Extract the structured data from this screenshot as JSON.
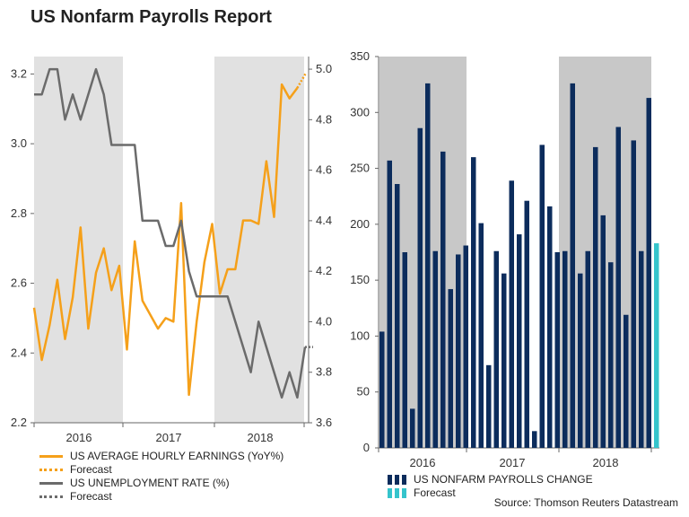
{
  "title": "US Nonfarm Payrolls Report",
  "source": "Source: Thomson Reuters Datastream",
  "colors": {
    "earnings": "#f5a01a",
    "unemployment": "#6b6b6b",
    "payrolls": "#0c2c5c",
    "payrolls_forecast": "#35c4cc",
    "shade": "#e1e1e1",
    "shade_right": "#c8c8c8"
  },
  "chart_data": [
    {
      "type": "line",
      "title": "",
      "x_labels": [
        "2016",
        "2017",
        "2018"
      ],
      "shaded_periods": [
        "2016",
        "2018"
      ],
      "left_axis": {
        "ylim": [
          2.2,
          3.25
        ],
        "ticks": [
          "2.2",
          "2.4",
          "2.6",
          "2.8",
          "3.0",
          "3.2"
        ]
      },
      "right_axis": {
        "ylim": [
          3.6,
          5.05
        ],
        "ticks": [
          "3.6",
          "3.8",
          "4.0",
          "4.2",
          "4.4",
          "4.6",
          "4.8",
          "5.0"
        ]
      },
      "series": [
        {
          "name": "US AVERAGE HOURLY EARNINGS (YoY%)",
          "axis": "left",
          "values": [
            2.53,
            2.38,
            2.48,
            2.61,
            2.44,
            2.56,
            2.76,
            2.47,
            2.63,
            2.7,
            2.58,
            2.65,
            2.41,
            2.72,
            2.55,
            2.51,
            2.47,
            2.5,
            2.49,
            2.83,
            2.28,
            2.49,
            2.66,
            2.77,
            2.57,
            2.64,
            2.64,
            2.78,
            2.78,
            2.77,
            2.95,
            2.79,
            3.17,
            3.13,
            3.16
          ],
          "forecast": [
            3.16,
            3.2
          ]
        },
        {
          "name": "US UNEMPLOYMENT RATE (%)",
          "axis": "right",
          "values": [
            4.9,
            4.9,
            5.0,
            5.0,
            4.8,
            4.9,
            4.8,
            4.9,
            5.0,
            4.9,
            4.7,
            4.7,
            4.7,
            4.7,
            4.4,
            4.4,
            4.4,
            4.3,
            4.3,
            4.4,
            4.2,
            4.1,
            4.1,
            4.1,
            4.1,
            4.1,
            4.0,
            3.9,
            3.8,
            4.0,
            3.9,
            3.8,
            3.7,
            3.8,
            3.7,
            3.9
          ],
          "forecast": [
            3.9,
            3.9
          ]
        }
      ]
    },
    {
      "type": "bar",
      "title": "",
      "x_labels": [
        "2016",
        "2017",
        "2018"
      ],
      "shaded_periods": [
        "2016",
        "2018"
      ],
      "ylim": [
        0,
        350
      ],
      "y_ticks": [
        "0",
        "50",
        "100",
        "150",
        "200",
        "250",
        "300",
        "350"
      ],
      "series": [
        {
          "name": "US NONFARM PAYROLLS CHANGE",
          "values": [
            104,
            257,
            236,
            175,
            35,
            286,
            326,
            176,
            265,
            142,
            173,
            181,
            260,
            201,
            74,
            176,
            156,
            239,
            191,
            221,
            15,
            271,
            216,
            175,
            176,
            326,
            156,
            176,
            269,
            208,
            166,
            287,
            119,
            275,
            176,
            313
          ]
        },
        {
          "name": "Forecast",
          "values": [
            183
          ]
        }
      ]
    }
  ],
  "legend_left": [
    {
      "label": "US AVERAGE HOURLY EARNINGS (YoY%)",
      "style": "solid",
      "color": "#f5a01a"
    },
    {
      "label": "Forecast",
      "style": "dotted",
      "color": "#f5a01a"
    },
    {
      "label": "US UNEMPLOYMENT RATE (%)",
      "style": "solid",
      "color": "#6b6b6b"
    },
    {
      "label": "Forecast",
      "style": "dotted",
      "color": "#6b6b6b"
    }
  ],
  "legend_right": [
    {
      "label": "US NONFARM PAYROLLS CHANGE",
      "color": "#0c2c5c"
    },
    {
      "label": "Forecast",
      "color": "#35c4cc"
    }
  ]
}
